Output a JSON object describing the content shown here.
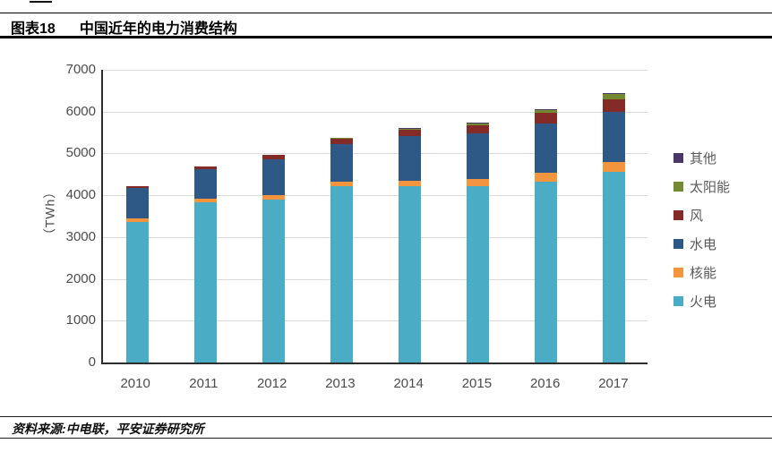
{
  "header": {
    "figure_label": "图表18",
    "title": "中国近年的电力消费结构"
  },
  "footer": {
    "source": "资料来源:中电联，平安证券研究所"
  },
  "chart_data": {
    "type": "bar",
    "stacked": true,
    "title": "中国近年的电力消费结构",
    "xlabel": "",
    "ylabel": "（TWh）",
    "ylim": [
      0,
      7000
    ],
    "ytick_step": 1000,
    "y_ticks": [
      7000,
      6000,
      5000,
      4000,
      3000,
      2000,
      1000,
      0
    ],
    "grid": true,
    "legend_position": "right",
    "categories": [
      "2010",
      "2011",
      "2012",
      "2013",
      "2014",
      "2015",
      "2016",
      "2017"
    ],
    "series": [
      {
        "name": "火电",
        "color": "#4AACC5",
        "values": [
          3370,
          3830,
          3900,
          4220,
          4220,
          4210,
          4330,
          4550
        ]
      },
      {
        "name": "核能",
        "color": "#F2953E",
        "values": [
          75,
          87,
          98,
          110,
          130,
          170,
          215,
          250
        ]
      },
      {
        "name": "水电",
        "color": "#2E5886",
        "values": [
          720,
          700,
          860,
          890,
          1060,
          1110,
          1180,
          1190
        ]
      },
      {
        "name": "风",
        "color": "#842B28",
        "values": [
          45,
          70,
          100,
          140,
          160,
          185,
          240,
          305
        ]
      },
      {
        "name": "太阳能",
        "color": "#748A30",
        "values": [
          0,
          0,
          0,
          10,
          25,
          40,
          65,
          120
        ]
      },
      {
        "name": "其他",
        "color": "#4A3768",
        "values": [
          10,
          10,
          15,
          15,
          15,
          20,
          25,
          30
        ]
      }
    ],
    "legend_order_top_to_bottom": [
      "其他",
      "太阳能",
      "风",
      "水电",
      "核能",
      "火电"
    ]
  },
  "style_colors": {
    "gridline": "#dadada",
    "axis": "#2e2e2e",
    "tick_text": "#4c4c4c",
    "legend_text": "#5a5a5a"
  }
}
